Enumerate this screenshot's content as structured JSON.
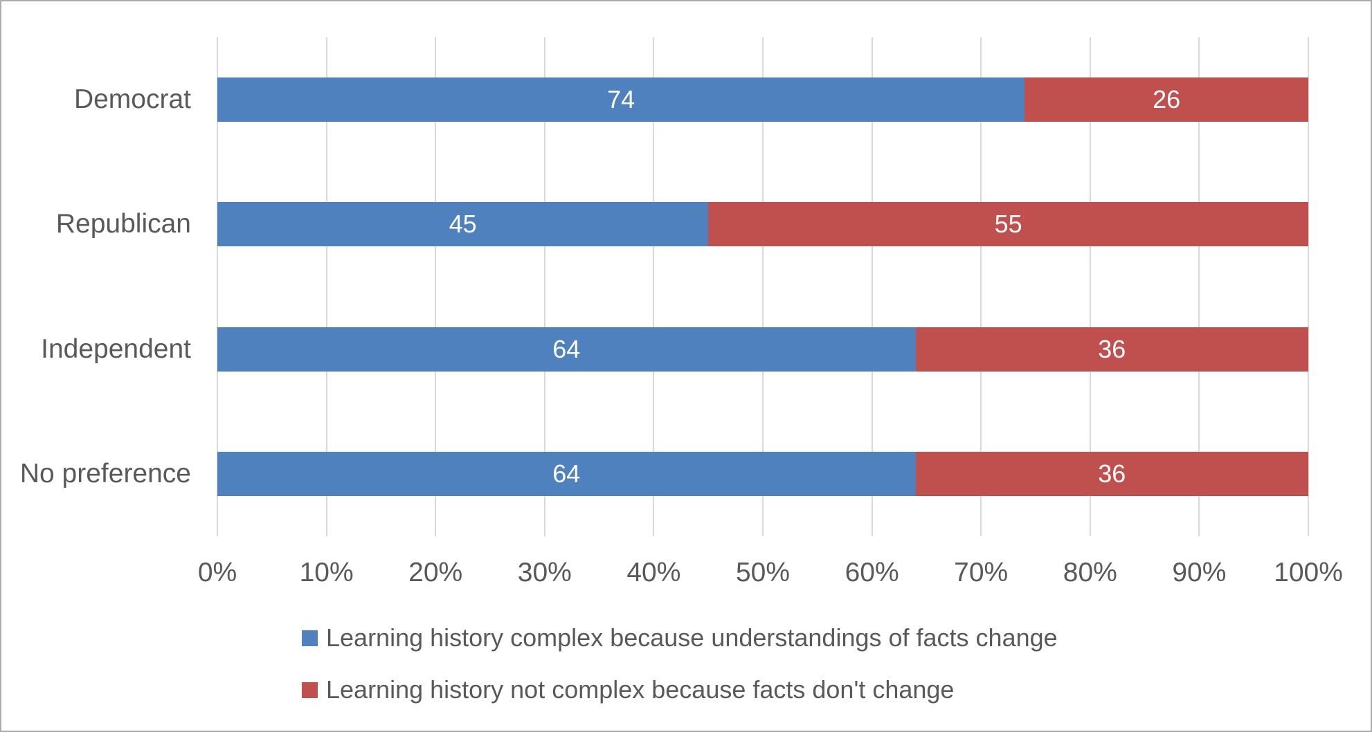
{
  "chart_data": {
    "type": "bar",
    "orientation": "horizontal",
    "stacked": true,
    "title": "",
    "xlabel": "",
    "ylabel": "",
    "categories": [
      "Democrat",
      "Republican",
      "Independent",
      "No preference"
    ],
    "series": [
      {
        "name": "Learning history complex because understandings of facts change",
        "color": "#4e81bd",
        "values": [
          74,
          45,
          64,
          64
        ]
      },
      {
        "name": "Learning history not complex because facts don't change",
        "color": "#c0504d",
        "values": [
          26,
          55,
          36,
          36
        ]
      }
    ],
    "x_ticks": [
      "0%",
      "10%",
      "20%",
      "30%",
      "40%",
      "50%",
      "60%",
      "70%",
      "80%",
      "90%",
      "100%"
    ],
    "xlim": [
      0,
      100
    ],
    "grid": true,
    "legend_position": "bottom-left"
  },
  "colors": {
    "background": "#ffffff",
    "border": "#ababab",
    "gridline": "#d9d9d9",
    "axis_text": "#595959",
    "bar_value_text": "#ffffff"
  }
}
